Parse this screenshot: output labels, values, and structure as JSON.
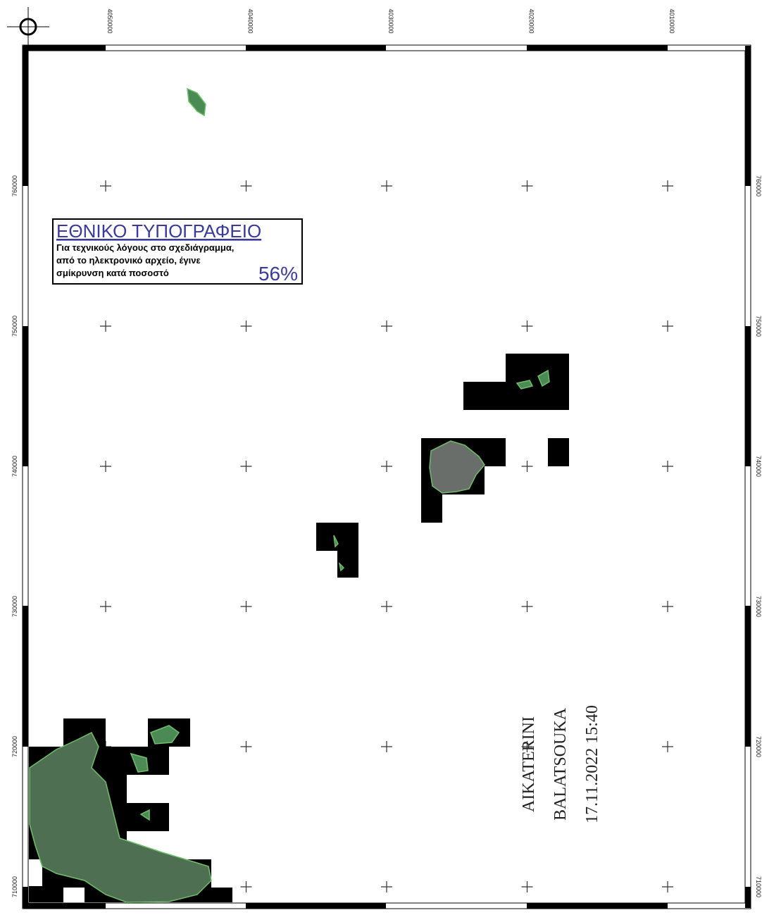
{
  "map": {
    "top_labels": [
      "4050000",
      "4040000",
      "4030000",
      "4020000",
      "4010000"
    ],
    "left_labels": [
      "760000",
      "750000",
      "740000",
      "730000",
      "720000",
      "710000"
    ],
    "right_labels": [
      "760000",
      "750000",
      "740000",
      "730000",
      "720000",
      "710000"
    ],
    "notice": {
      "title": "ΕΘΝΙΚΟ ΤΥΠΟΓΡΑΦΕΙΟ",
      "lines": [
        "Για τεχνικούς λόγους στο σχεδιάγραμμα,",
        "από το ηλεκτρονικό αρχείο, έγινε",
        "σμίκρυνση κατά ποσοστό"
      ],
      "percent": "56%"
    },
    "signature": [
      "AIKATERINI",
      "BALATSOUKA",
      "17.11.2022 15:40"
    ]
  }
}
